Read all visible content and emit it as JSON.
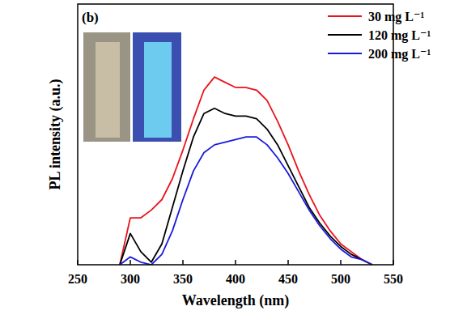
{
  "chart_data": {
    "type": "line",
    "panel_label": "(b)",
    "x_label": "Wavelength (nm)",
    "y_label": "PL intensity (a.u.)",
    "x": [
      290,
      300,
      310,
      320,
      330,
      340,
      350,
      360,
      370,
      380,
      390,
      400,
      410,
      420,
      430,
      440,
      450,
      460,
      470,
      480,
      490,
      500,
      510,
      520,
      530
    ],
    "series": [
      {
        "name": "30 mg L⁻¹",
        "color": "#e8141c",
        "values": [
          0,
          18,
          18,
          21,
          25,
          33,
          44,
          56,
          67,
          72,
          70,
          68,
          68,
          67,
          63,
          55,
          46,
          36,
          27,
          19,
          13,
          8,
          5,
          2,
          0
        ]
      },
      {
        "name": "120 mg L⁻¹",
        "color": "#000000",
        "values": [
          0,
          12,
          5,
          1,
          8,
          22,
          36,
          49,
          58,
          60,
          58,
          57,
          57,
          56,
          52,
          46,
          38,
          30,
          22,
          16,
          11,
          7,
          4,
          2,
          0
        ]
      },
      {
        "name": "200 mg L⁻¹",
        "color": "#1a1adc",
        "values": [
          0,
          3,
          1,
          0,
          4,
          13,
          25,
          36,
          43,
          46,
          47,
          48,
          49,
          49,
          46,
          41,
          35,
          28,
          21,
          15,
          10,
          6,
          3,
          2,
          0
        ]
      }
    ],
    "xlim": [
      250,
      550
    ],
    "xticks": [
      250,
      300,
      350,
      400,
      450,
      500,
      550
    ],
    "ylim": [
      0,
      100
    ],
    "yticks": [],
    "tick_labels": "x",
    "legend": "upper right",
    "grid": false
  }
}
